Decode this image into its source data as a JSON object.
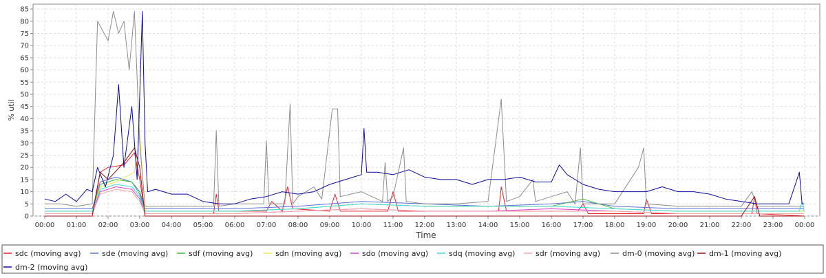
{
  "chart_data": {
    "type": "line",
    "xlabel": "Time",
    "ylabel": "% util",
    "ylim": [
      0,
      87
    ],
    "xlim": [
      "00:00",
      "24:00"
    ],
    "grid": true,
    "legend_placement": "bottom",
    "x_ticks": [
      "00:00",
      "01:00",
      "02:00",
      "03:00",
      "04:00",
      "05:00",
      "06:00",
      "07:00",
      "08:00",
      "09:00",
      "10:00",
      "11:00",
      "12:00",
      "13:00",
      "14:00",
      "15:00",
      "16:00",
      "17:00",
      "18:00",
      "19:00",
      "20:00",
      "21:00",
      "22:00",
      "23:00",
      "00:00"
    ],
    "y_ticks": [
      0,
      5,
      10,
      15,
      20,
      25,
      30,
      35,
      40,
      45,
      50,
      55,
      60,
      65,
      70,
      75,
      80,
      85
    ],
    "series": [
      {
        "name": "sdc (moving avg)",
        "color": "#e8232a",
        "points": [
          [
            "00:00",
            1
          ],
          [
            "01:30",
            1
          ],
          [
            "01:45",
            18
          ],
          [
            "02:00",
            20
          ],
          [
            "02:30",
            21
          ],
          [
            "02:50",
            26
          ],
          [
            "03:00",
            15
          ],
          [
            "03:10",
            1
          ],
          [
            "05:20",
            1
          ],
          [
            "05:25",
            9
          ],
          [
            "05:30",
            2
          ],
          [
            "07:00",
            2
          ],
          [
            "07:10",
            6
          ],
          [
            "07:30",
            2
          ],
          [
            "07:40",
            12
          ],
          [
            "07:50",
            3
          ],
          [
            "09:00",
            2
          ],
          [
            "09:10",
            9
          ],
          [
            "09:20",
            2
          ],
          [
            "10:50",
            2
          ],
          [
            "11:00",
            10
          ],
          [
            "11:10",
            2
          ],
          [
            "13:00",
            2
          ],
          [
            "14:20",
            2
          ],
          [
            "14:25",
            12
          ],
          [
            "14:35",
            2
          ],
          [
            "16:50",
            2
          ],
          [
            "17:00",
            5
          ],
          [
            "17:10",
            1
          ],
          [
            "18:55",
            1
          ],
          [
            "19:00",
            7
          ],
          [
            "19:10",
            1
          ],
          [
            "22:20",
            1
          ],
          [
            "22:25",
            8
          ],
          [
            "22:30",
            1
          ],
          [
            "23:59",
            0
          ]
        ]
      },
      {
        "name": "sde (moving avg)",
        "color": "#5a6fd8",
        "points": [
          [
            "00:00",
            3
          ],
          [
            "01:30",
            3
          ],
          [
            "01:45",
            14
          ],
          [
            "02:15",
            16
          ],
          [
            "02:45",
            14
          ],
          [
            "03:00",
            10
          ],
          [
            "03:10",
            3
          ],
          [
            "06:00",
            3
          ],
          [
            "08:00",
            4
          ],
          [
            "10:00",
            6
          ],
          [
            "12:00",
            5
          ],
          [
            "14:00",
            4
          ],
          [
            "16:00",
            5
          ],
          [
            "17:00",
            6
          ],
          [
            "18:00",
            4
          ],
          [
            "20:00",
            3
          ],
          [
            "22:00",
            3
          ],
          [
            "23:59",
            3
          ]
        ]
      },
      {
        "name": "sdf (moving avg)",
        "color": "#3bbd3b",
        "points": [
          [
            "00:00",
            2
          ],
          [
            "01:30",
            2
          ],
          [
            "01:45",
            13
          ],
          [
            "02:15",
            15
          ],
          [
            "02:45",
            14
          ],
          [
            "03:00",
            9
          ],
          [
            "03:10",
            2
          ],
          [
            "06:00",
            2
          ],
          [
            "08:00",
            3
          ],
          [
            "10:00",
            5
          ],
          [
            "12:00",
            4
          ],
          [
            "14:00",
            4
          ],
          [
            "16:00",
            4
          ],
          [
            "17:00",
            7
          ],
          [
            "18:00",
            3
          ],
          [
            "20:00",
            2
          ],
          [
            "22:00",
            2
          ],
          [
            "23:59",
            2
          ]
        ]
      },
      {
        "name": "sdn (moving avg)",
        "color": "#f2e84a",
        "points": [
          [
            "00:00",
            2
          ],
          [
            "01:30",
            2
          ],
          [
            "01:45",
            12
          ],
          [
            "02:15",
            14
          ],
          [
            "02:50",
            18
          ],
          [
            "03:00",
            34
          ],
          [
            "03:10",
            2
          ],
          [
            "06:00",
            2
          ],
          [
            "08:00",
            3
          ],
          [
            "10:00",
            5
          ],
          [
            "12:00",
            4
          ],
          [
            "14:00",
            4
          ],
          [
            "16:00",
            4
          ],
          [
            "18:00",
            3
          ],
          [
            "20:00",
            2
          ],
          [
            "22:00",
            2
          ],
          [
            "23:59",
            2
          ]
        ]
      },
      {
        "name": "sdo (moving avg)",
        "color": "#d640d6",
        "points": [
          [
            "00:00",
            1
          ],
          [
            "01:30",
            1
          ],
          [
            "01:45",
            10
          ],
          [
            "02:15",
            12
          ],
          [
            "02:45",
            11
          ],
          [
            "03:00",
            7
          ],
          [
            "03:10",
            1
          ],
          [
            "06:00",
            1
          ],
          [
            "08:00",
            2
          ],
          [
            "10:00",
            3
          ],
          [
            "12:00",
            2
          ],
          [
            "14:00",
            2
          ],
          [
            "16:00",
            3
          ],
          [
            "18:00",
            2
          ],
          [
            "20:00",
            1
          ],
          [
            "22:00",
            1
          ],
          [
            "23:59",
            1
          ]
        ]
      },
      {
        "name": "sdq (moving avg)",
        "color": "#3fd8e8",
        "points": [
          [
            "00:00",
            2
          ],
          [
            "01:30",
            2
          ],
          [
            "01:45",
            11
          ],
          [
            "02:15",
            13
          ],
          [
            "02:45",
            12
          ],
          [
            "03:00",
            8
          ],
          [
            "03:10",
            2
          ],
          [
            "06:00",
            2
          ],
          [
            "08:00",
            3
          ],
          [
            "10:00",
            5
          ],
          [
            "12:00",
            4
          ],
          [
            "14:00",
            4
          ],
          [
            "16:00",
            4
          ],
          [
            "18:00",
            3
          ],
          [
            "20:00",
            2
          ],
          [
            "22:00",
            2
          ],
          [
            "23:50",
            2
          ],
          [
            "23:55",
            6
          ],
          [
            "23:59",
            2
          ]
        ]
      },
      {
        "name": "sdr (moving avg)",
        "color": "#f4a6a6",
        "points": [
          [
            "00:00",
            1
          ],
          [
            "01:30",
            1
          ],
          [
            "01:45",
            9
          ],
          [
            "02:15",
            11
          ],
          [
            "02:45",
            10
          ],
          [
            "03:00",
            6
          ],
          [
            "03:10",
            1
          ],
          [
            "06:00",
            1
          ],
          [
            "08:00",
            2
          ],
          [
            "10:00",
            3
          ],
          [
            "12:00",
            2
          ],
          [
            "14:00",
            2
          ],
          [
            "16:00",
            2
          ],
          [
            "18:00",
            2
          ],
          [
            "20:00",
            1
          ],
          [
            "22:00",
            1
          ],
          [
            "23:59",
            1
          ]
        ]
      },
      {
        "name": "dm-0 (moving avg)",
        "color": "#8c8c8c",
        "points": [
          [
            "00:00",
            5
          ],
          [
            "00:30",
            5
          ],
          [
            "01:00",
            4
          ],
          [
            "01:30",
            5
          ],
          [
            "01:40",
            80
          ],
          [
            "02:00",
            72
          ],
          [
            "02:10",
            84
          ],
          [
            "02:20",
            75
          ],
          [
            "02:30",
            80
          ],
          [
            "02:40",
            60
          ],
          [
            "02:50",
            84
          ],
          [
            "03:00",
            30
          ],
          [
            "03:10",
            4
          ],
          [
            "05:20",
            4
          ],
          [
            "05:25",
            35
          ],
          [
            "05:30",
            4
          ],
          [
            "06:00",
            5
          ],
          [
            "06:55",
            5
          ],
          [
            "07:00",
            31
          ],
          [
            "07:05",
            5
          ],
          [
            "07:35",
            5
          ],
          [
            "07:45",
            46
          ],
          [
            "07:50",
            5
          ],
          [
            "08:00",
            8
          ],
          [
            "08:30",
            12
          ],
          [
            "08:45",
            7
          ],
          [
            "09:05",
            44
          ],
          [
            "09:15",
            44
          ],
          [
            "09:20",
            8
          ],
          [
            "10:00",
            10
          ],
          [
            "10:40",
            6
          ],
          [
            "10:45",
            22
          ],
          [
            "10:50",
            6
          ],
          [
            "11:00",
            8
          ],
          [
            "11:20",
            28
          ],
          [
            "11:25",
            6
          ],
          [
            "12:00",
            5
          ],
          [
            "13:00",
            5
          ],
          [
            "14:00",
            6
          ],
          [
            "14:25",
            48
          ],
          [
            "14:35",
            6
          ],
          [
            "15:00",
            8
          ],
          [
            "15:25",
            15
          ],
          [
            "15:30",
            6
          ],
          [
            "16:00",
            8
          ],
          [
            "16:30",
            10
          ],
          [
            "16:45",
            5
          ],
          [
            "16:55",
            28
          ],
          [
            "17:00",
            5
          ],
          [
            "18:00",
            5
          ],
          [
            "18:45",
            20
          ],
          [
            "18:55",
            28
          ],
          [
            "19:00",
            5
          ],
          [
            "20:00",
            4
          ],
          [
            "21:00",
            4
          ],
          [
            "22:00",
            4
          ],
          [
            "22:20",
            10
          ],
          [
            "22:30",
            4
          ],
          [
            "23:59",
            4
          ]
        ]
      },
      {
        "name": "dm-1 (moving avg)",
        "color": "#9c0e0e",
        "points": [
          [
            "00:00",
            0
          ],
          [
            "01:30",
            0
          ],
          [
            "01:45",
            18
          ],
          [
            "02:00",
            15
          ],
          [
            "02:30",
            22
          ],
          [
            "02:50",
            28
          ],
          [
            "03:00",
            20
          ],
          [
            "03:10",
            0
          ],
          [
            "06:00",
            0
          ],
          [
            "08:00",
            0
          ],
          [
            "10:00",
            0
          ],
          [
            "12:00",
            0
          ],
          [
            "14:00",
            0
          ],
          [
            "16:00",
            0
          ],
          [
            "18:00",
            0
          ],
          [
            "20:00",
            0
          ],
          [
            "22:00",
            0
          ],
          [
            "22:25",
            8
          ],
          [
            "22:35",
            0
          ],
          [
            "23:59",
            0
          ]
        ]
      },
      {
        "name": "dm-2 (moving avg)",
        "color": "#0a0aa0",
        "points": [
          [
            "00:00",
            7
          ],
          [
            "00:20",
            6
          ],
          [
            "00:40",
            9
          ],
          [
            "01:00",
            6
          ],
          [
            "01:20",
            11
          ],
          [
            "01:30",
            10
          ],
          [
            "01:40",
            20
          ],
          [
            "01:55",
            12
          ],
          [
            "02:10",
            25
          ],
          [
            "02:20",
            54
          ],
          [
            "02:30",
            20
          ],
          [
            "02:45",
            45
          ],
          [
            "02:55",
            15
          ],
          [
            "03:05",
            84
          ],
          [
            "03:10",
            30
          ],
          [
            "03:15",
            10
          ],
          [
            "03:30",
            11
          ],
          [
            "04:00",
            9
          ],
          [
            "04:30",
            9
          ],
          [
            "05:00",
            6
          ],
          [
            "05:30",
            5
          ],
          [
            "06:00",
            5
          ],
          [
            "06:30",
            7
          ],
          [
            "07:00",
            8
          ],
          [
            "07:30",
            10
          ],
          [
            "08:00",
            9
          ],
          [
            "08:30",
            10
          ],
          [
            "09:00",
            13
          ],
          [
            "09:30",
            15
          ],
          [
            "10:00",
            17
          ],
          [
            "10:05",
            36
          ],
          [
            "10:10",
            18
          ],
          [
            "10:30",
            18
          ],
          [
            "11:00",
            17
          ],
          [
            "11:30",
            19
          ],
          [
            "12:00",
            16
          ],
          [
            "12:30",
            15
          ],
          [
            "13:00",
            15
          ],
          [
            "13:30",
            13
          ],
          [
            "14:00",
            15
          ],
          [
            "14:30",
            15
          ],
          [
            "15:00",
            16
          ],
          [
            "15:30",
            14
          ],
          [
            "16:00",
            14
          ],
          [
            "16:15",
            21
          ],
          [
            "16:30",
            17
          ],
          [
            "17:00",
            13
          ],
          [
            "17:30",
            11
          ],
          [
            "18:00",
            10
          ],
          [
            "18:30",
            10
          ],
          [
            "19:00",
            10
          ],
          [
            "19:30",
            12
          ],
          [
            "20:00",
            10
          ],
          [
            "20:30",
            10
          ],
          [
            "21:00",
            9
          ],
          [
            "21:30",
            7
          ],
          [
            "22:00",
            6
          ],
          [
            "22:30",
            5
          ],
          [
            "23:00",
            5
          ],
          [
            "23:30",
            5
          ],
          [
            "23:50",
            18
          ],
          [
            "23:55",
            5
          ],
          [
            "23:59",
            5
          ]
        ]
      }
    ]
  }
}
